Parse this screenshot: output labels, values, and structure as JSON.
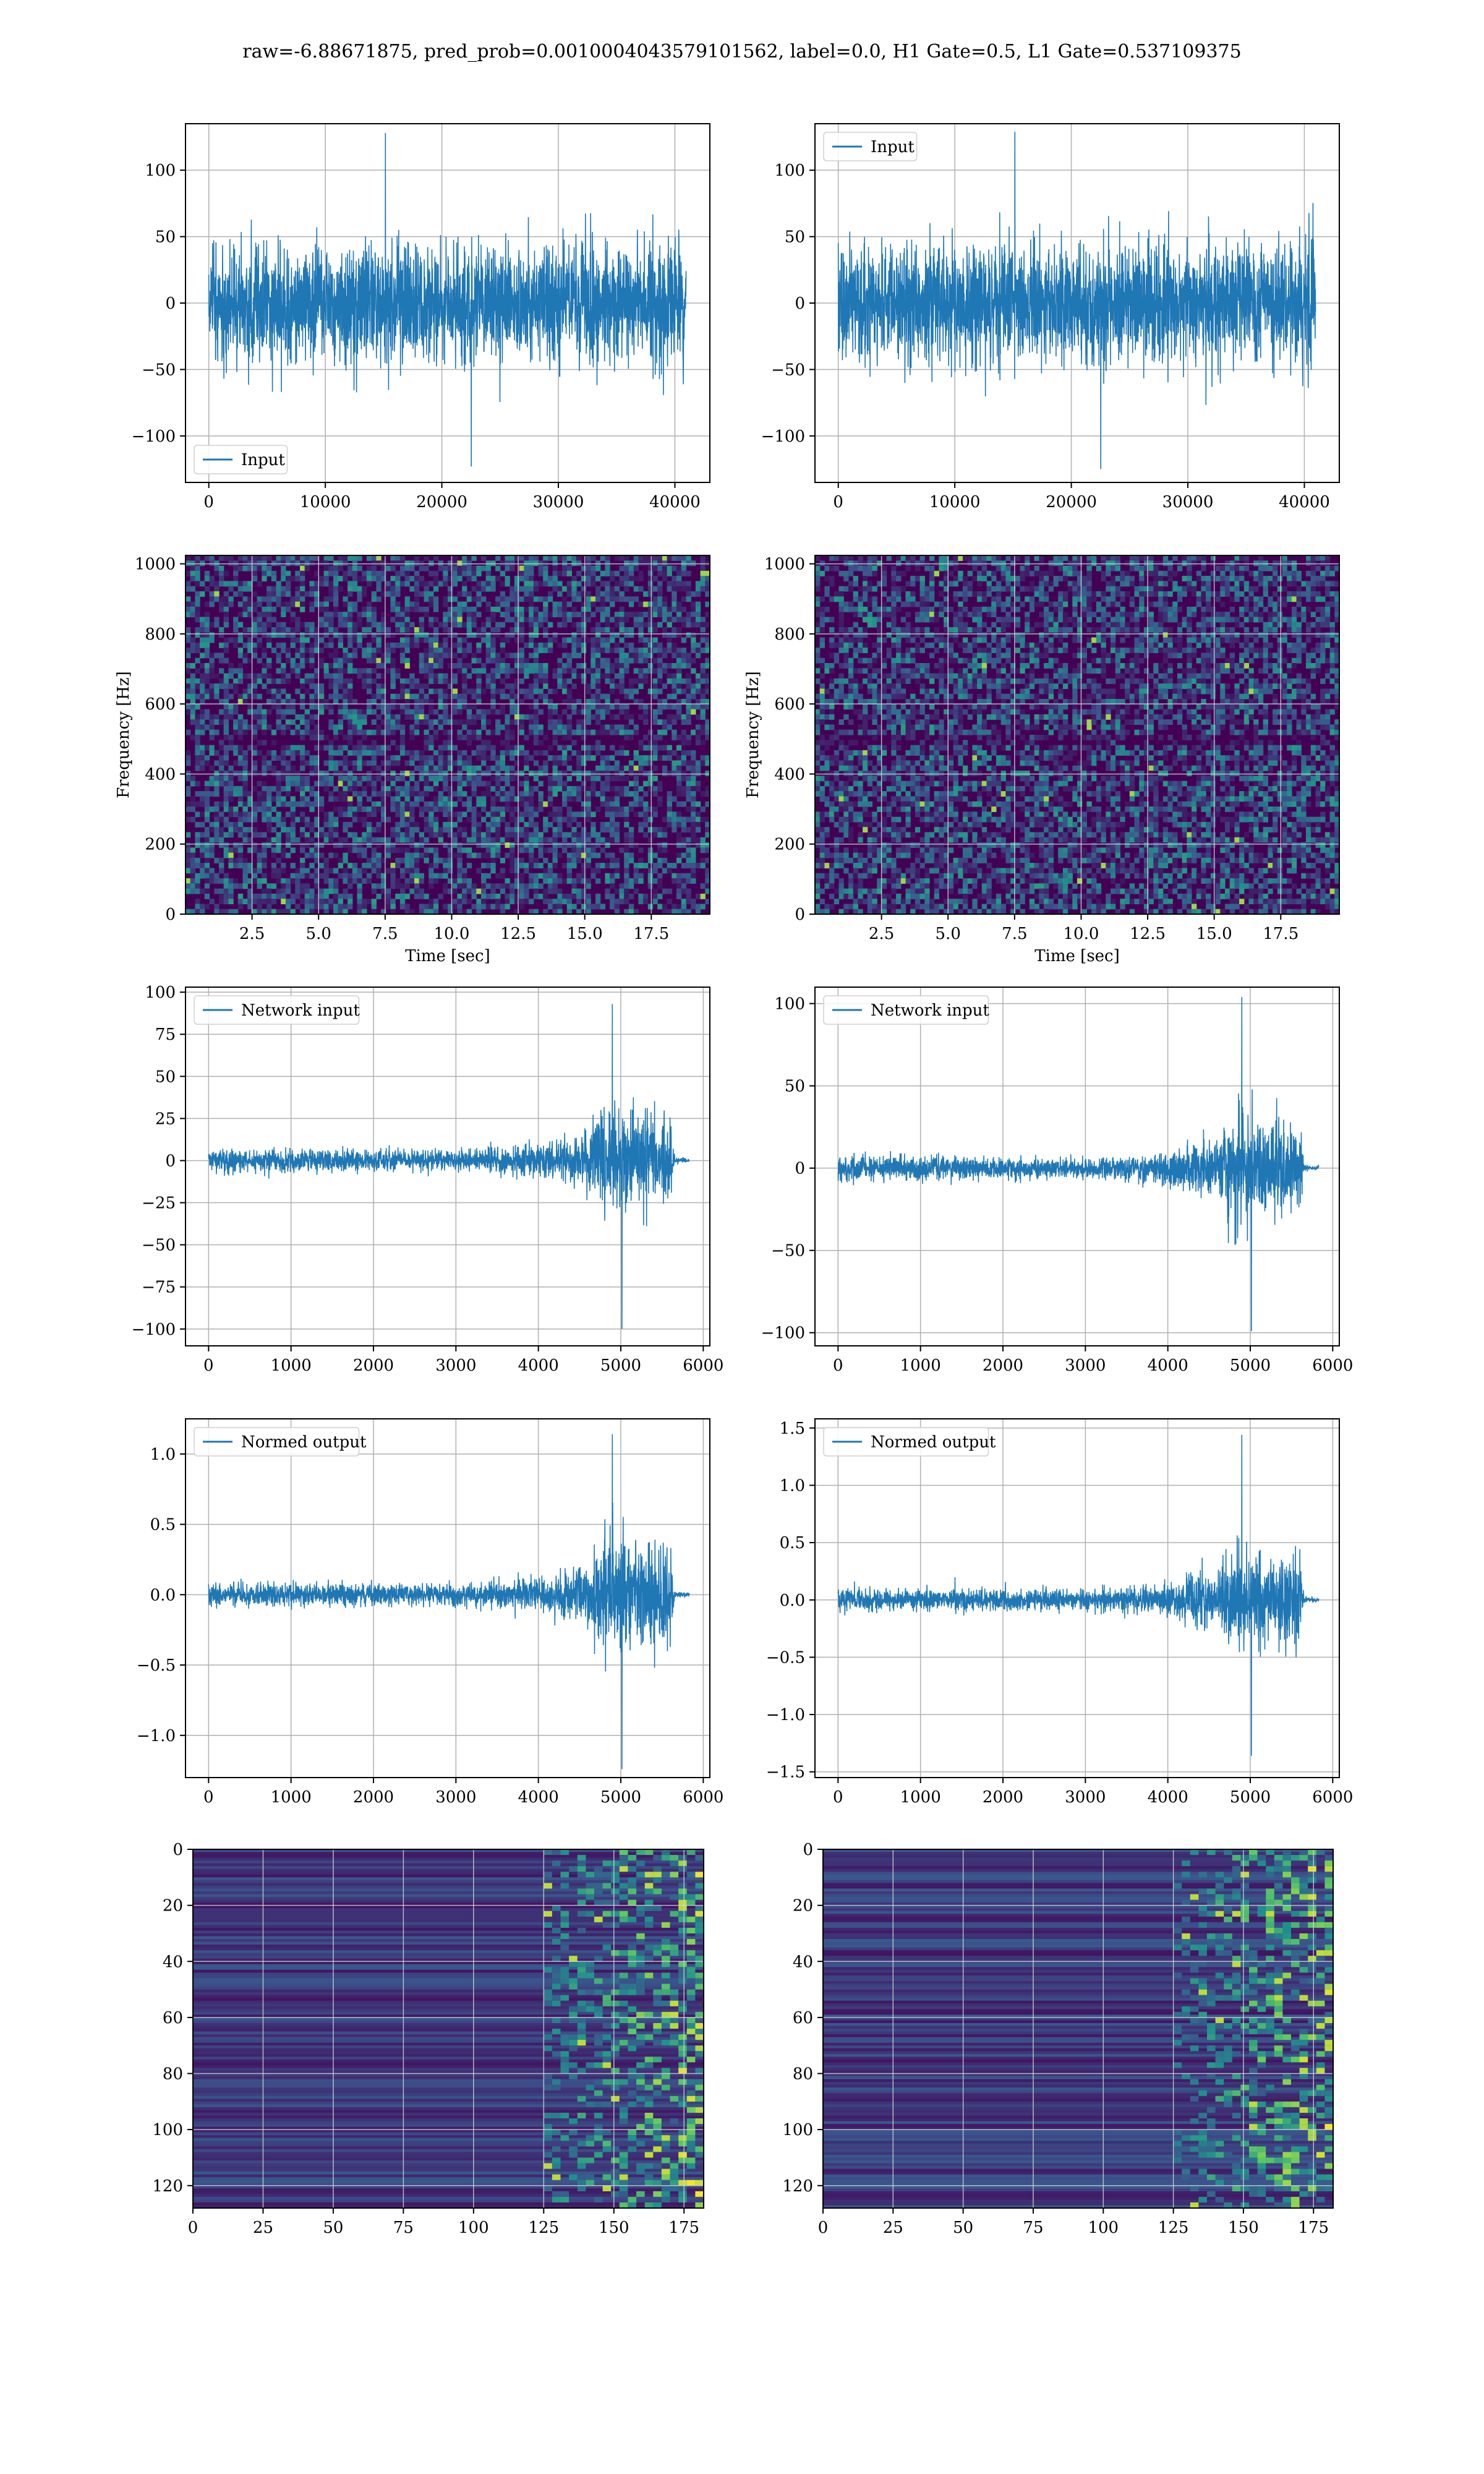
{
  "figure": {
    "suptitle": "raw=-6.88671875, pred_prob=0.0010004043579101562, label=0.0, H1 Gate=0.5, L1 Gate=0.537109375"
  },
  "colors": {
    "line": "#1f77b4",
    "grid": "#b0b0b0",
    "viridis_dark": "#440154",
    "viridis_mid": "#31688e",
    "viridis_light": "#35b779",
    "viridis_top": "#fde725"
  },
  "chart_data": [
    {
      "id": "h1_input",
      "type": "line",
      "legend": [
        "Input"
      ],
      "legend_loc": "lower left",
      "xlim": [
        -2000,
        43000
      ],
      "ylim": [
        -135,
        135
      ],
      "xticks": [
        0,
        10000,
        20000,
        30000,
        40000
      ],
      "xticklabels": [
        "0",
        "10000",
        "20000",
        "30000",
        "40000"
      ],
      "yticks": [
        -100,
        -50,
        0,
        50,
        100
      ],
      "yticklabels": [
        "−100",
        "−50",
        "0",
        "50",
        "100"
      ],
      "signal": {
        "x_start": 0,
        "x_end": 40960,
        "envelope": [
          [
            0,
            1
          ],
          [
            1,
            1
          ]
        ],
        "peak_max": 128,
        "peak_min": -123
      }
    },
    {
      "id": "l1_input",
      "type": "line",
      "legend": [
        "Input"
      ],
      "legend_loc": "upper left",
      "xlim": [
        -2000,
        43000
      ],
      "ylim": [
        -135,
        135
      ],
      "xticks": [
        0,
        10000,
        20000,
        30000,
        40000
      ],
      "xticklabels": [
        "0",
        "10000",
        "20000",
        "30000",
        "40000"
      ],
      "yticks": [
        -100,
        -50,
        0,
        50,
        100
      ],
      "yticklabels": [
        "−100",
        "−50",
        "0",
        "50",
        "100"
      ],
      "signal": {
        "x_start": 0,
        "x_end": 40960,
        "envelope": [
          [
            0,
            1
          ],
          [
            1,
            1
          ]
        ],
        "peak_max": 129,
        "peak_min": -125
      }
    },
    {
      "id": "h1_spectrogram",
      "type": "heatmap",
      "legend": [],
      "xlabel": "Time [sec]",
      "ylabel": "Frequency [Hz]",
      "xlim": [
        0,
        19.7
      ],
      "ylim": [
        0,
        1024
      ],
      "xticks": [
        2.5,
        5.0,
        7.5,
        10.0,
        12.5,
        15.0,
        17.5
      ],
      "xticklabels": [
        "2.5",
        "5.0",
        "7.5",
        "10.0",
        "12.5",
        "15.0",
        "17.5"
      ],
      "yticks": [
        0,
        200,
        400,
        600,
        800,
        1000
      ],
      "yticklabels": [
        "0",
        "200",
        "400",
        "600",
        "800",
        "1000"
      ],
      "colormap": "viridis"
    },
    {
      "id": "l1_spectrogram",
      "type": "heatmap",
      "legend": [],
      "xlabel": "Time [sec]",
      "ylabel": "Frequency [Hz]",
      "xlim": [
        0,
        19.7
      ],
      "ylim": [
        0,
        1024
      ],
      "xticks": [
        2.5,
        5.0,
        7.5,
        10.0,
        12.5,
        15.0,
        17.5
      ],
      "xticklabels": [
        "2.5",
        "5.0",
        "7.5",
        "10.0",
        "12.5",
        "15.0",
        "17.5"
      ],
      "yticks": [
        0,
        200,
        400,
        600,
        800,
        1000
      ],
      "yticklabels": [
        "0",
        "200",
        "400",
        "600",
        "800",
        "1000"
      ],
      "colormap": "viridis"
    },
    {
      "id": "h1_network_input",
      "type": "line",
      "legend": [
        "Network input"
      ],
      "legend_loc": "upper left",
      "xlim": [
        -280,
        6080
      ],
      "ylim": [
        -110,
        103
      ],
      "xticks": [
        0,
        1000,
        2000,
        3000,
        4000,
        5000,
        6000
      ],
      "xticklabels": [
        "0",
        "1000",
        "2000",
        "3000",
        "4000",
        "5000",
        "6000"
      ],
      "yticks": [
        -100,
        -75,
        -50,
        -25,
        0,
        25,
        50,
        75,
        100
      ],
      "yticklabels": [
        "−100",
        "−75",
        "−50",
        "−25",
        "0",
        "25",
        "50",
        "75",
        "100"
      ],
      "signal": {
        "x_start": 0,
        "x_end": 5830,
        "envelope": [
          [
            0,
            0.2
          ],
          [
            0.55,
            0.17
          ],
          [
            0.7,
            0.28
          ],
          [
            0.79,
            0.5
          ],
          [
            0.82,
            0.95
          ],
          [
            0.9,
            0.8
          ],
          [
            0.96,
            0.85
          ],
          [
            0.97,
            0.05
          ],
          [
            1,
            0.04
          ]
        ],
        "peak_max": 93,
        "peak_min": -100
      }
    },
    {
      "id": "l1_network_input",
      "type": "line",
      "legend": [
        "Network input"
      ],
      "legend_loc": "upper left",
      "xlim": [
        -280,
        6080
      ],
      "ylim": [
        -108,
        110
      ],
      "xticks": [
        0,
        1000,
        2000,
        3000,
        4000,
        5000,
        6000
      ],
      "xticklabels": [
        "0",
        "1000",
        "2000",
        "3000",
        "4000",
        "5000",
        "6000"
      ],
      "yticks": [
        -100,
        -50,
        0,
        50,
        100
      ],
      "yticklabels": [
        "−100",
        "−50",
        "0",
        "50",
        "100"
      ],
      "signal": {
        "x_start": 0,
        "x_end": 5830,
        "envelope": [
          [
            0,
            0.2
          ],
          [
            0.55,
            0.18
          ],
          [
            0.7,
            0.3
          ],
          [
            0.79,
            0.55
          ],
          [
            0.83,
            0.95
          ],
          [
            0.9,
            0.8
          ],
          [
            0.96,
            0.85
          ],
          [
            0.97,
            0.05
          ],
          [
            1,
            0.04
          ]
        ],
        "peak_max": 104,
        "peak_min": -99
      }
    },
    {
      "id": "h1_normed_output",
      "type": "line",
      "legend": [
        "Normed output"
      ],
      "legend_loc": "upper left",
      "xlim": [
        -280,
        6080
      ],
      "ylim": [
        -1.3,
        1.25
      ],
      "xticks": [
        0,
        1000,
        2000,
        3000,
        4000,
        5000,
        6000
      ],
      "xticklabels": [
        "0",
        "1000",
        "2000",
        "3000",
        "4000",
        "5000",
        "6000"
      ],
      "yticks": [
        -1.0,
        -0.5,
        0.0,
        0.5,
        1.0
      ],
      "yticklabels": [
        "−1.0",
        "−0.5",
        "0.0",
        "0.5",
        "1.0"
      ],
      "signal": {
        "x_start": 0,
        "x_end": 5830,
        "envelope": [
          [
            0,
            0.2
          ],
          [
            0.55,
            0.17
          ],
          [
            0.7,
            0.28
          ],
          [
            0.79,
            0.5
          ],
          [
            0.82,
            0.95
          ],
          [
            0.9,
            0.8
          ],
          [
            0.96,
            0.85
          ],
          [
            0.97,
            0.05
          ],
          [
            1,
            0.04
          ]
        ],
        "peak_max": 1.14,
        "peak_min": -1.24
      }
    },
    {
      "id": "l1_normed_output",
      "type": "line",
      "legend": [
        "Normed output"
      ],
      "legend_loc": "upper left",
      "xlim": [
        -280,
        6080
      ],
      "ylim": [
        -1.55,
        1.58
      ],
      "xticks": [
        0,
        1000,
        2000,
        3000,
        4000,
        5000,
        6000
      ],
      "xticklabels": [
        "0",
        "1000",
        "2000",
        "3000",
        "4000",
        "5000",
        "6000"
      ],
      "yticks": [
        -1.5,
        -1.0,
        -0.5,
        0.0,
        0.5,
        1.0,
        1.5
      ],
      "yticklabels": [
        "−1.5",
        "−1.0",
        "−0.5",
        "0.0",
        "0.5",
        "1.0",
        "1.5"
      ],
      "signal": {
        "x_start": 0,
        "x_end": 5830,
        "envelope": [
          [
            0,
            0.2
          ],
          [
            0.55,
            0.18
          ],
          [
            0.7,
            0.3
          ],
          [
            0.79,
            0.55
          ],
          [
            0.83,
            0.95
          ],
          [
            0.9,
            0.8
          ],
          [
            0.96,
            0.85
          ],
          [
            0.97,
            0.05
          ],
          [
            1,
            0.04
          ]
        ],
        "peak_max": 1.44,
        "peak_min": -1.36
      }
    },
    {
      "id": "h1_feature_map",
      "type": "heatmap",
      "legend": [],
      "xlim": [
        0,
        182
      ],
      "ylim": [
        128,
        0
      ],
      "xticks": [
        0,
        25,
        50,
        75,
        100,
        125,
        150,
        175
      ],
      "xticklabels": [
        "0",
        "25",
        "50",
        "75",
        "100",
        "125",
        "150",
        "175"
      ],
      "yticks": [
        0,
        20,
        40,
        60,
        80,
        100,
        120
      ],
      "yticklabels": [
        "0",
        "20",
        "40",
        "60",
        "80",
        "100",
        "120"
      ],
      "colormap": "viridis",
      "active_from_x": 125
    },
    {
      "id": "l1_feature_map",
      "type": "heatmap",
      "legend": [],
      "xlim": [
        0,
        182
      ],
      "ylim": [
        128,
        0
      ],
      "xticks": [
        0,
        25,
        50,
        75,
        100,
        125,
        150,
        175
      ],
      "xticklabels": [
        "0",
        "25",
        "50",
        "75",
        "100",
        "125",
        "150",
        "175"
      ],
      "yticks": [
        0,
        20,
        40,
        60,
        80,
        100,
        120
      ],
      "yticklabels": [
        "0",
        "20",
        "40",
        "60",
        "80",
        "100",
        "120"
      ],
      "colormap": "viridis",
      "active_from_x": 125
    }
  ]
}
